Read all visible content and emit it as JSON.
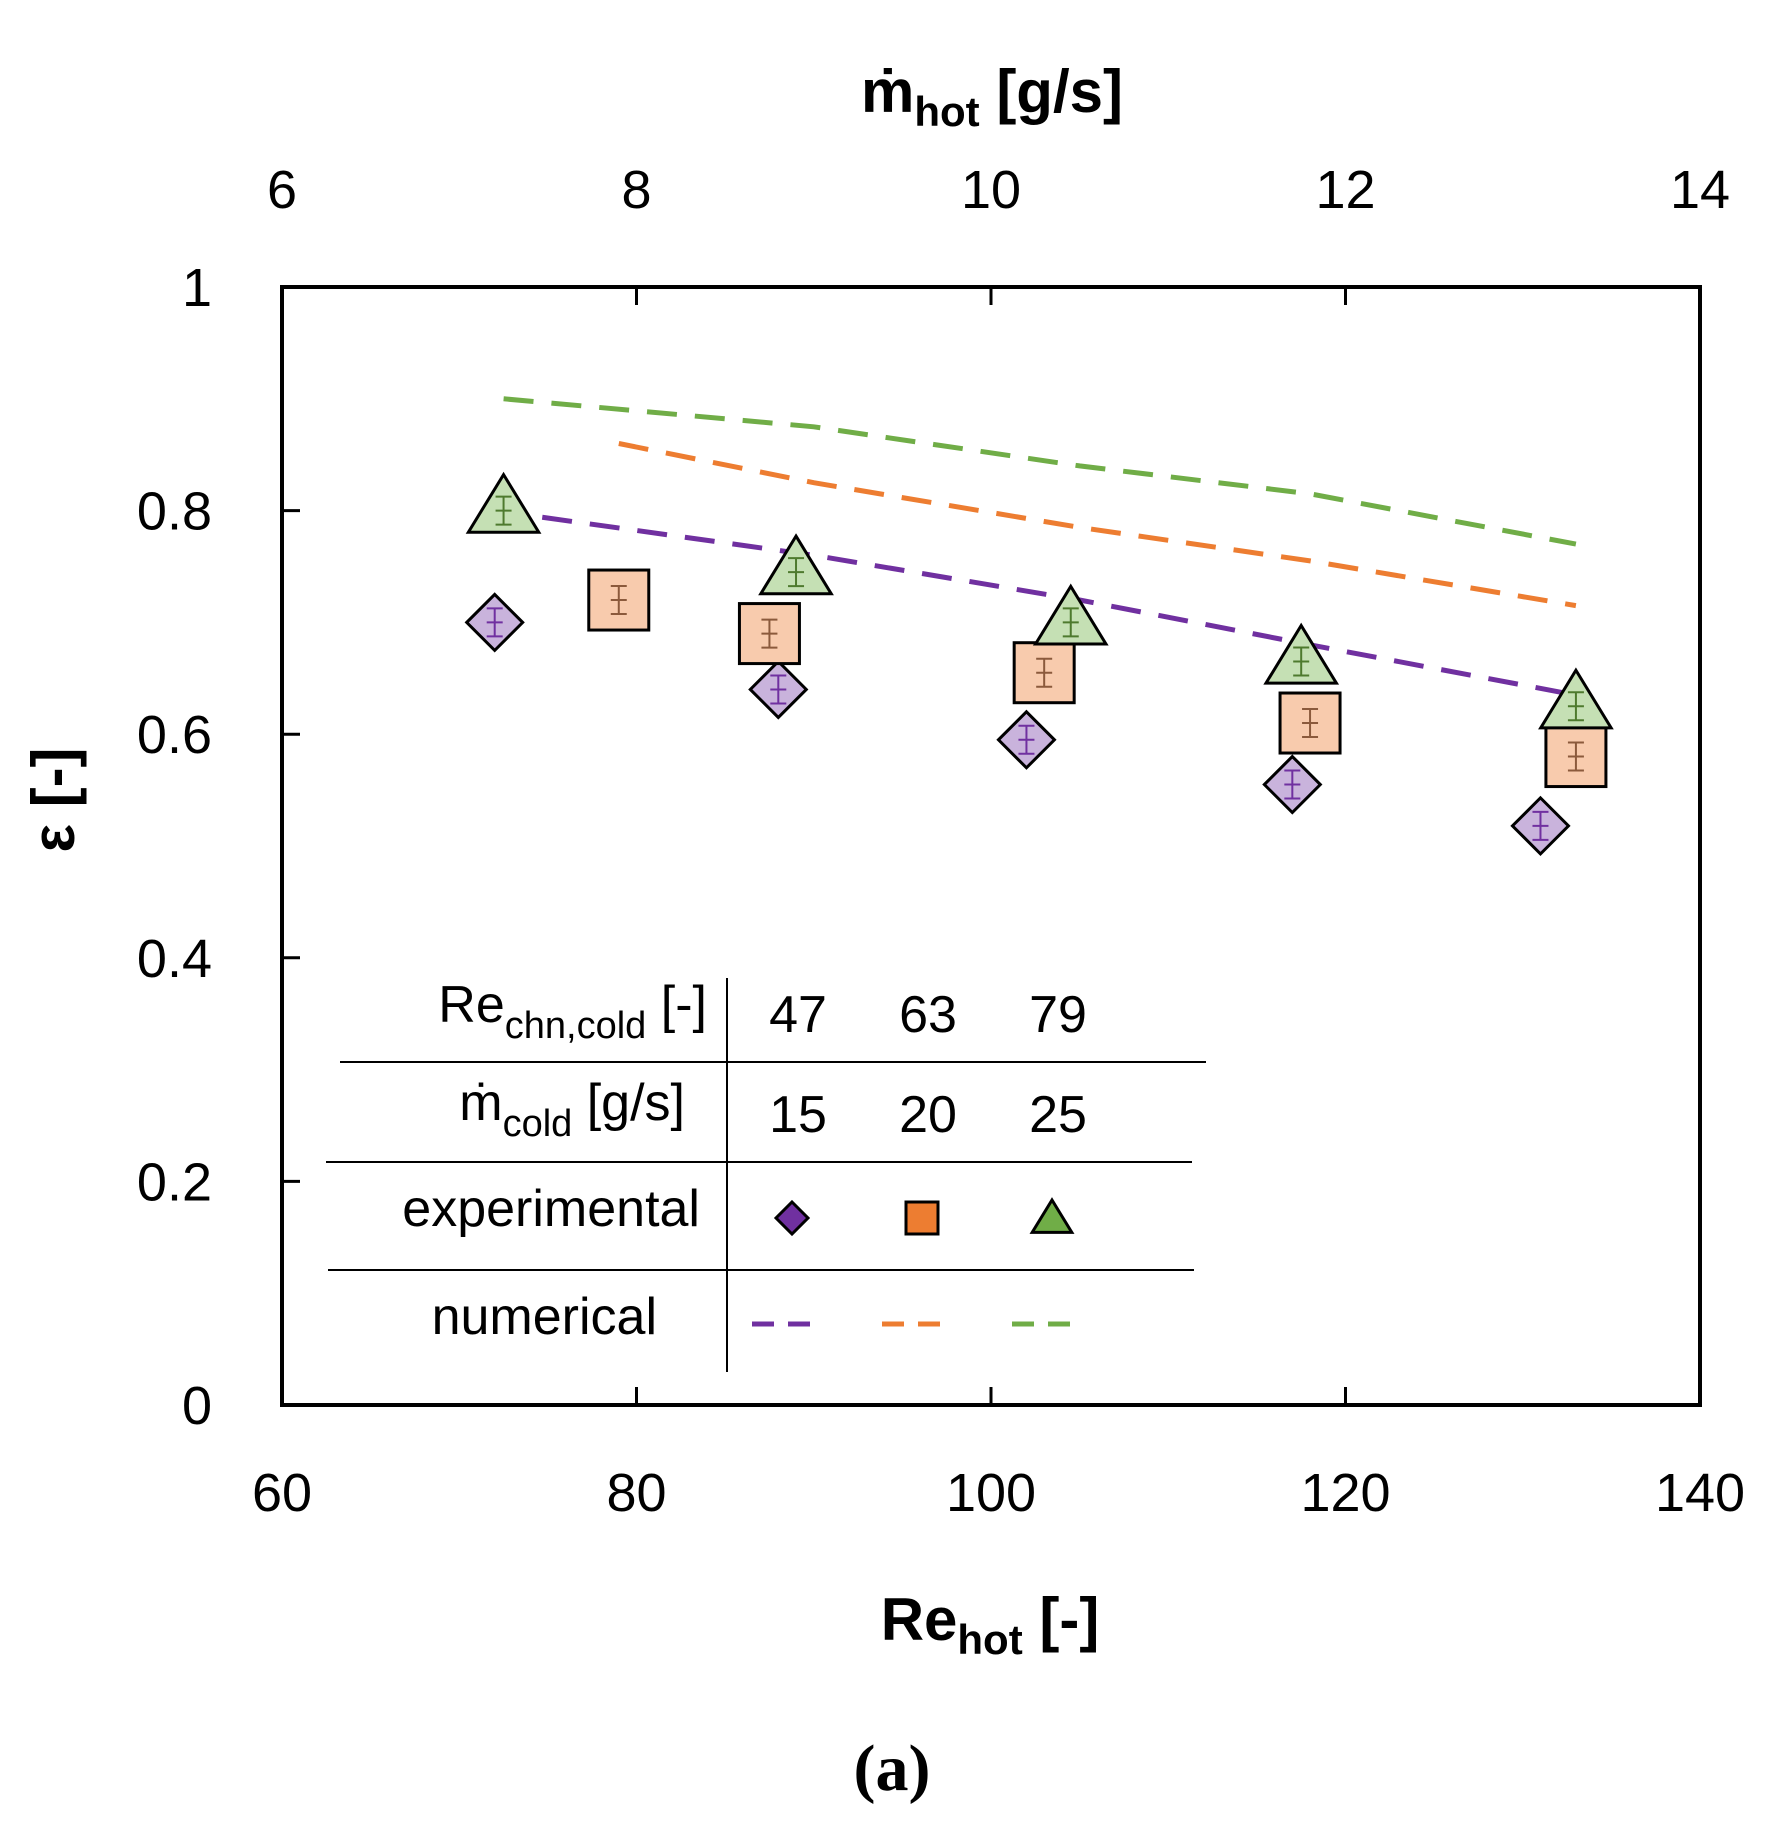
{
  "chart_data": {
    "type": "scatter",
    "panel_label": "(a)",
    "x_axis": {
      "title_main": "Re",
      "title_sub": "hot",
      "title_unit": " [-]",
      "range": [
        60,
        140
      ],
      "ticks": [
        60,
        80,
        100,
        120,
        140
      ],
      "tick_labels": [
        "60",
        "80",
        "100",
        "120",
        "140"
      ]
    },
    "x2_axis": {
      "title_main": "ṁ",
      "title_sub": "hot",
      "title_unit": " [g/s]",
      "range": [
        6,
        14
      ],
      "ticks": [
        6,
        8,
        10,
        12,
        14
      ],
      "tick_labels": [
        "6",
        "8",
        "10",
        "12",
        "14"
      ]
    },
    "y_axis": {
      "title": "ε [-]",
      "range": [
        0,
        1
      ],
      "ticks": [
        0,
        0.2,
        0.4,
        0.6,
        0.8,
        1
      ],
      "tick_labels": [
        "0",
        "0.2",
        "0.4",
        "0.6",
        "0.8",
        "1"
      ]
    },
    "series": [
      {
        "name": "Re_chn,cold = 47, ṁ_cold = 15 g/s",
        "re_chn_cold": "47",
        "m_cold": "15",
        "color": "#7030A0",
        "fill": "#C9B3DC",
        "legend_fill": "#7030A0",
        "marker": "diamond",
        "experimental": [
          [
            72,
            0.7
          ],
          [
            88,
            0.64
          ],
          [
            102,
            0.595
          ],
          [
            117,
            0.555
          ],
          [
            131,
            0.518
          ]
        ],
        "numerical": [
          [
            72,
            0.8
          ],
          [
            90,
            0.76
          ],
          [
            105,
            0.72
          ],
          [
            118,
            0.68
          ],
          [
            133,
            0.635
          ]
        ]
      },
      {
        "name": "Re_chn,cold = 63, ṁ_cold = 20 g/s",
        "re_chn_cold": "63",
        "m_cold": "20",
        "color": "#ED7D31",
        "fill": "#F8CBAD",
        "legend_fill": "#ED7D31",
        "marker": "square",
        "experimental": [
          [
            79,
            0.72
          ],
          [
            87.5,
            0.69
          ],
          [
            103,
            0.655
          ],
          [
            118,
            0.61
          ],
          [
            133,
            0.58
          ]
        ],
        "numerical": [
          [
            79,
            0.86
          ],
          [
            90,
            0.825
          ],
          [
            105,
            0.785
          ],
          [
            118,
            0.755
          ],
          [
            133,
            0.715
          ]
        ]
      },
      {
        "name": "Re_chn,cold = 79, ṁ_cold = 25 g/s",
        "re_chn_cold": "79",
        "m_cold": "25",
        "color": "#70AD47",
        "fill": "#C5E0B4",
        "legend_fill": "#70AD47",
        "marker": "triangle",
        "experimental": [
          [
            72.5,
            0.8
          ],
          [
            89,
            0.745
          ],
          [
            104.5,
            0.7
          ],
          [
            117.5,
            0.665
          ],
          [
            133,
            0.625
          ]
        ],
        "numerical": [
          [
            72.5,
            0.9
          ],
          [
            90,
            0.875
          ],
          [
            105,
            0.84
          ],
          [
            118,
            0.815
          ],
          [
            133,
            0.77
          ]
        ]
      }
    ],
    "legend": {
      "placement": "bottom-left",
      "row1_main": "Re",
      "row1_sub": "chn,cold",
      "row1_unit": " [-]",
      "row2_main": "ṁ",
      "row2_sub": "cold",
      "row2_unit": " [g/s]",
      "row3_label": "experimental",
      "row4_label": "numerical"
    }
  }
}
